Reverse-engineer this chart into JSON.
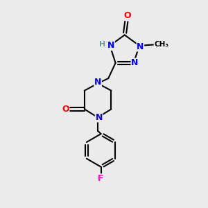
{
  "bg_color": "#ebebeb",
  "atom_colors": {
    "N": "#0000ff",
    "O": "#ff0000",
    "F": "#ff00cc",
    "C": "#000000",
    "H": "#6a9a9a"
  },
  "bond_color": "#000000",
  "font_size_atoms": 9,
  "fig_size": [
    3.0,
    3.0
  ]
}
